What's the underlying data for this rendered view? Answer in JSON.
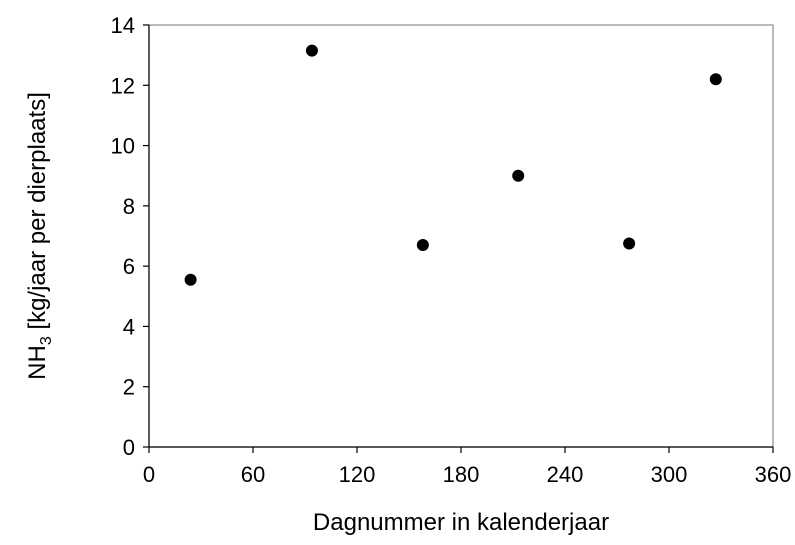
{
  "chart_data": {
    "type": "scatter",
    "title": "",
    "xlabel": "Dagnummer in kalenderjaar",
    "ylabel_main": "NH",
    "ylabel_sub": "3",
    "ylabel_rest": " [kg/jaar per dierplaats]",
    "xlim": [
      0,
      360
    ],
    "ylim": [
      0,
      14
    ],
    "xticks": [
      0,
      60,
      120,
      180,
      240,
      300,
      360
    ],
    "yticks": [
      0,
      2,
      4,
      6,
      8,
      10,
      12,
      14
    ],
    "grid": false,
    "legend": "none",
    "marker_color": "#000000",
    "series": [
      {
        "x": [
          24,
          94,
          158,
          213,
          277,
          327
        ],
        "y": [
          5.55,
          13.15,
          6.7,
          9.0,
          6.75,
          12.2
        ]
      }
    ]
  }
}
